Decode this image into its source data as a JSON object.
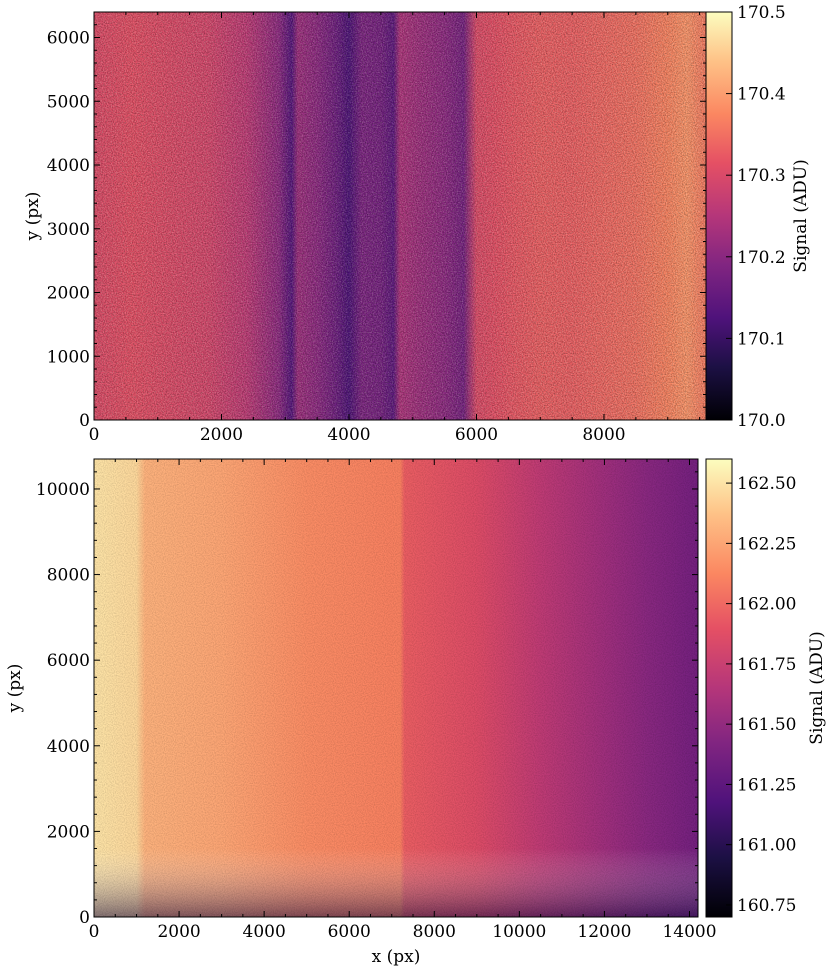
{
  "chart_data": [
    {
      "type": "heatmap",
      "title": "",
      "xlabel": "",
      "ylabel": "y (px)",
      "colorbar_label": "Signal (ADU)",
      "colormap": "magma",
      "xlim": [
        0,
        9600
      ],
      "ylim": [
        0,
        6400
      ],
      "clim": [
        170.0,
        170.5
      ],
      "x_ticks": [
        0,
        2000,
        4000,
        6000,
        8000
      ],
      "y_ticks": [
        0,
        1000,
        2000,
        3000,
        4000,
        5000,
        6000
      ],
      "colorbar_ticks": [
        "170.0",
        "170.1",
        "170.2",
        "170.3",
        "170.4",
        "170.5"
      ],
      "column_profile": {
        "x": [
          0,
          600,
          1200,
          1800,
          2400,
          2900,
          3100,
          3200,
          3500,
          3800,
          4000,
          4200,
          4500,
          4700,
          4800,
          5100,
          5500,
          5800,
          6000,
          6300,
          6600,
          7000,
          7500,
          8000,
          8500,
          9000,
          9300,
          9600
        ],
        "value": [
          170.3,
          170.31,
          170.3,
          170.29,
          170.26,
          170.2,
          170.13,
          170.22,
          170.2,
          170.16,
          170.12,
          170.18,
          170.17,
          170.14,
          170.24,
          170.22,
          170.2,
          170.17,
          170.3,
          170.31,
          170.32,
          170.33,
          170.33,
          170.34,
          170.35,
          170.37,
          170.39,
          170.36
        ]
      }
    },
    {
      "type": "heatmap",
      "title": "",
      "xlabel": "x (px)",
      "ylabel": "y (px)",
      "colorbar_label": "Signal (ADU)",
      "colormap": "magma",
      "xlim": [
        0,
        14200
      ],
      "ylim": [
        0,
        10700
      ],
      "clim": [
        160.7,
        162.6
      ],
      "x_ticks": [
        0,
        2000,
        4000,
        6000,
        8000,
        10000,
        12000,
        14000
      ],
      "y_ticks": [
        0,
        2000,
        4000,
        6000,
        8000,
        10000
      ],
      "colorbar_ticks": [
        "160.75",
        "161.00",
        "161.25",
        "161.50",
        "161.75",
        "162.00",
        "162.25",
        "162.50"
      ],
      "column_profile": {
        "x": [
          0,
          1000,
          1200,
          3000,
          5000,
          7000,
          7200,
          7300,
          9000,
          10500,
          12000,
          13000,
          14200
        ],
        "value": [
          162.5,
          162.45,
          162.3,
          162.25,
          162.15,
          162.1,
          162.1,
          161.95,
          161.85,
          161.7,
          161.55,
          161.45,
          161.35
        ]
      }
    }
  ]
}
